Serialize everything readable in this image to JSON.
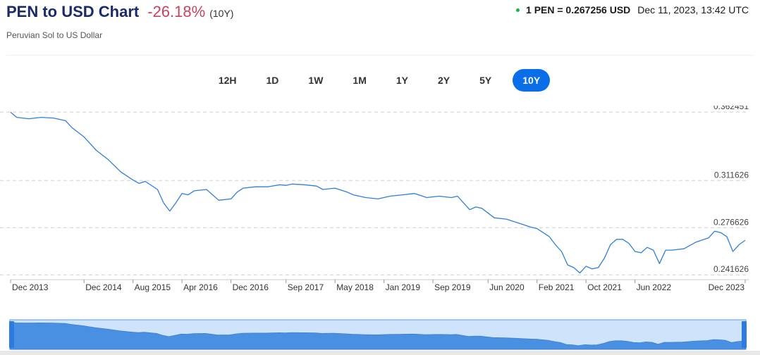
{
  "header": {
    "title": "PEN to USD Chart",
    "change": "-26.18%",
    "period": "(10Y)",
    "subtitle": "Peruvian Sol to US Dollar",
    "rate": "1 PEN = 0.267256 USD",
    "timestamp": "Dec 11, 2023, 13:42 UTC"
  },
  "tabs": [
    "12H",
    "1D",
    "1W",
    "1M",
    "1Y",
    "2Y",
    "5Y",
    "10Y"
  ],
  "active_tab": "10Y",
  "colors": {
    "line": "#2f7fd8",
    "accent": "#0a6ee8",
    "negative": "#c9425f",
    "live": "#19b34a"
  },
  "chart_data": {
    "type": "line",
    "title": "",
    "xlabel": "",
    "ylabel": "",
    "y_ticks": [
      0.362451,
      0.311626,
      0.276626,
      0.241626
    ],
    "y_tick_labels": [
      "0.362451",
      "0.311626",
      "0.276626",
      "0.241626"
    ],
    "ylim": [
      0.2386,
      0.3672
    ],
    "x_tick_labels": [
      "Dec 2013",
      "Dec 2014",
      "Aug 2015",
      "Apr 2016",
      "Dec 2016",
      "Sep 2017",
      "May 2018",
      "Jan 2019",
      "Sep 2019",
      "Jun 2020",
      "Feb 2021",
      "Oct 2021",
      "Jun 2022",
      "Dec 2023"
    ],
    "x_tick_dates": [
      "2013-12",
      "2014-12",
      "2015-08",
      "2016-04",
      "2016-12",
      "2017-09",
      "2018-05",
      "2019-01",
      "2019-09",
      "2020-06",
      "2021-02",
      "2021-10",
      "2022-06",
      "2023-12"
    ],
    "grid": true,
    "series": [
      {
        "x": [
          "2013-12",
          "2014-01",
          "2014-03",
          "2014-05",
          "2014-07",
          "2014-09",
          "2014-10",
          "2014-12",
          "2015-02",
          "2015-04",
          "2015-06",
          "2015-08",
          "2015-09",
          "2015-10",
          "2015-12",
          "2016-01",
          "2016-02",
          "2016-03",
          "2016-04",
          "2016-05",
          "2016-06",
          "2016-08",
          "2016-10",
          "2016-12",
          "2017-01",
          "2017-02",
          "2017-04",
          "2017-06",
          "2017-08",
          "2017-09",
          "2017-10",
          "2017-12",
          "2018-02",
          "2018-03",
          "2018-05",
          "2018-07",
          "2018-08",
          "2018-10",
          "2018-12",
          "2019-02",
          "2019-04",
          "2019-06",
          "2019-08",
          "2019-10",
          "2019-12",
          "2020-01",
          "2020-03",
          "2020-04",
          "2020-05",
          "2020-07",
          "2020-09",
          "2020-11",
          "2021-01",
          "2021-02",
          "2021-03",
          "2021-04",
          "2021-05",
          "2021-06",
          "2021-07",
          "2021-08",
          "2021-09",
          "2021-10",
          "2021-11",
          "2021-12",
          "2022-01",
          "2022-02",
          "2022-03",
          "2022-04",
          "2022-05",
          "2022-06",
          "2022-07",
          "2022-08",
          "2022-09",
          "2022-10",
          "2022-11",
          "2022-12",
          "2023-02",
          "2023-04",
          "2023-06",
          "2023-07",
          "2023-08",
          "2023-09",
          "2023-10",
          "2023-11",
          "2023-12"
        ],
        "values": [
          0.3624,
          0.3585,
          0.3575,
          0.3585,
          0.358,
          0.356,
          0.351,
          0.344,
          0.334,
          0.327,
          0.318,
          0.312,
          0.3095,
          0.311,
          0.305,
          0.295,
          0.289,
          0.295,
          0.302,
          0.301,
          0.304,
          0.305,
          0.297,
          0.298,
          0.303,
          0.306,
          0.307,
          0.307,
          0.3085,
          0.308,
          0.309,
          0.3085,
          0.3075,
          0.305,
          0.306,
          0.303,
          0.301,
          0.299,
          0.298,
          0.3,
          0.301,
          0.302,
          0.299,
          0.3,
          0.299,
          0.3,
          0.29,
          0.292,
          0.291,
          0.284,
          0.283,
          0.28,
          0.277,
          0.276,
          0.273,
          0.27,
          0.264,
          0.259,
          0.249,
          0.247,
          0.243,
          0.248,
          0.246,
          0.247,
          0.254,
          0.264,
          0.268,
          0.268,
          0.265,
          0.259,
          0.258,
          0.262,
          0.26,
          0.25,
          0.26,
          0.26,
          0.261,
          0.266,
          0.269,
          0.274,
          0.273,
          0.27,
          0.259,
          0.264,
          0.2673
        ]
      }
    ]
  }
}
